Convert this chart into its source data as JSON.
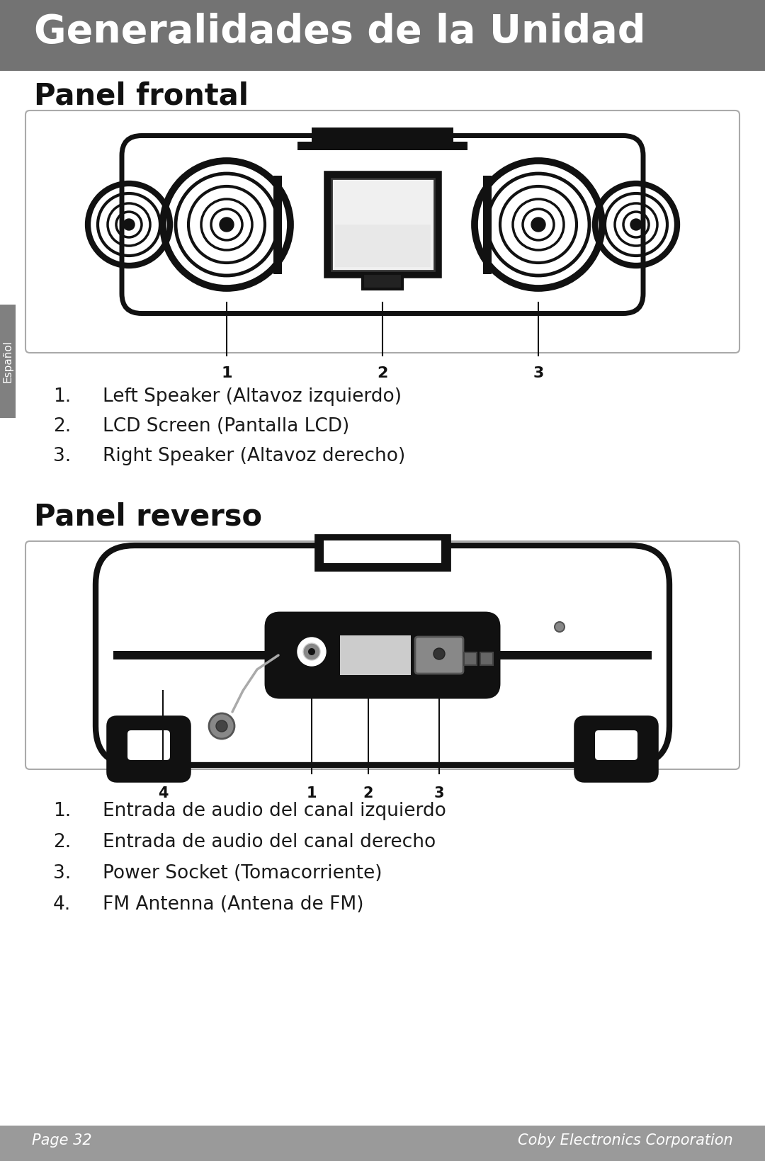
{
  "title": "Generalidades de la Unidad",
  "title_bg": "#737373",
  "title_color": "#ffffff",
  "page_bg": "#ffffff",
  "section1_title": "Panel frontal",
  "section2_title": "Panel reverso",
  "front_items": [
    [
      "1.",
      "Left Speaker (Altavoz izquierdo)"
    ],
    [
      "2.",
      "LCD Screen (Pantalla LCD)"
    ],
    [
      "3.",
      "Right Speaker (Altavoz derecho)"
    ]
  ],
  "rear_items": [
    [
      "1.",
      "Entrada de audio del canal izquierdo"
    ],
    [
      "2.",
      "Entrada de audio del canal derecho"
    ],
    [
      "3.",
      "Power Socket (Tomacorriente)"
    ],
    [
      "4.",
      "FM Antenna (Antena de FM)"
    ]
  ],
  "footer_left": "Page 32",
  "footer_right": "Coby Electronics Corporation",
  "footer_bg": "#9a9a9a",
  "footer_color": "#ffffff",
  "sidebar_text": "Español",
  "sidebar_bg": "#808080",
  "sidebar_color": "#ffffff"
}
